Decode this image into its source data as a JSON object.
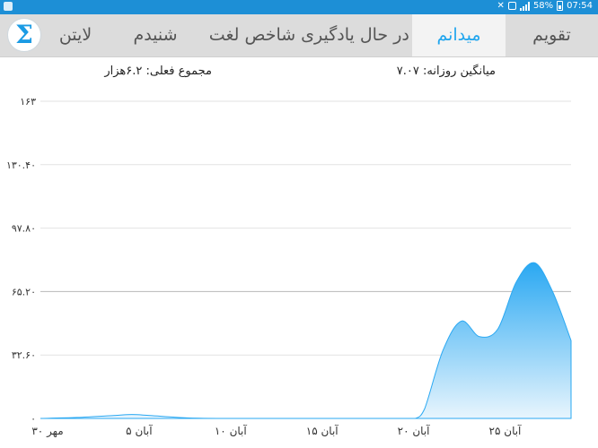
{
  "status_bar": {
    "time": "07:54",
    "battery": "58%",
    "icons": [
      "app-notification-icon",
      "mute-icon",
      "alarm-icon",
      "signal-icon",
      "battery-icon"
    ]
  },
  "app": {
    "logo_glyph": "Σ",
    "tabs": [
      {
        "label": "تقویم",
        "active": false
      },
      {
        "label": "میدانم",
        "active": true
      },
      {
        "label": "در حال یادگیری",
        "active": false
      },
      {
        "label": "شاخص لغت",
        "active": false
      },
      {
        "label": "شنیدم",
        "active": false
      },
      {
        "label": "لایتن",
        "active": false
      }
    ]
  },
  "summary": {
    "daily_average": "میانگین روزانه: ۷.۰۷",
    "total": "مجموع فعلی: ۶.۲هزار"
  },
  "colors": {
    "accent": "#21a6ee",
    "status_bar": "#1d8fd6",
    "area_top": "#2aa8f2",
    "area_bottom": "#e8f5fd"
  },
  "chart_data": {
    "type": "area",
    "y_tick_labels": [
      "۰",
      "۳۲.۶۰",
      "۶۵.۲۰",
      "۹۷.۸۰",
      "۱۳۰.۴۰",
      "۱۶۳"
    ],
    "y_tick_values": [
      0,
      32.6,
      65.2,
      97.8,
      130.4,
      163
    ],
    "ylim": [
      0,
      163
    ],
    "x_tick_labels": [
      "۳۰ مهر",
      "۵ آبان",
      "۱۰ آبان",
      "۱۵ آبان",
      "۲۰ آبان",
      "۲۵ آبان"
    ],
    "x_tick_days": [
      0,
      5,
      10,
      15,
      20,
      25
    ],
    "xlim": [
      0,
      29
    ],
    "grid": true,
    "series": [
      {
        "x": [
          0,
          2,
          4,
          5,
          6,
          8,
          10,
          12,
          14,
          16,
          18,
          20,
          20.5,
          21,
          22,
          23,
          24,
          25,
          26,
          27,
          28,
          29
        ],
        "y": [
          0,
          0.5,
          1.5,
          2,
          1.5,
          0.3,
          0,
          0,
          0,
          0,
          0,
          0,
          0,
          5,
          35,
          50,
          42,
          46,
          70,
          80,
          65,
          40
        ]
      }
    ]
  }
}
